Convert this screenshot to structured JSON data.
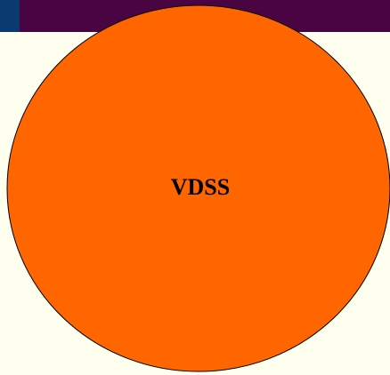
{
  "nodes": [
    {
      "label": "VDSS"
    }
  ]
}
